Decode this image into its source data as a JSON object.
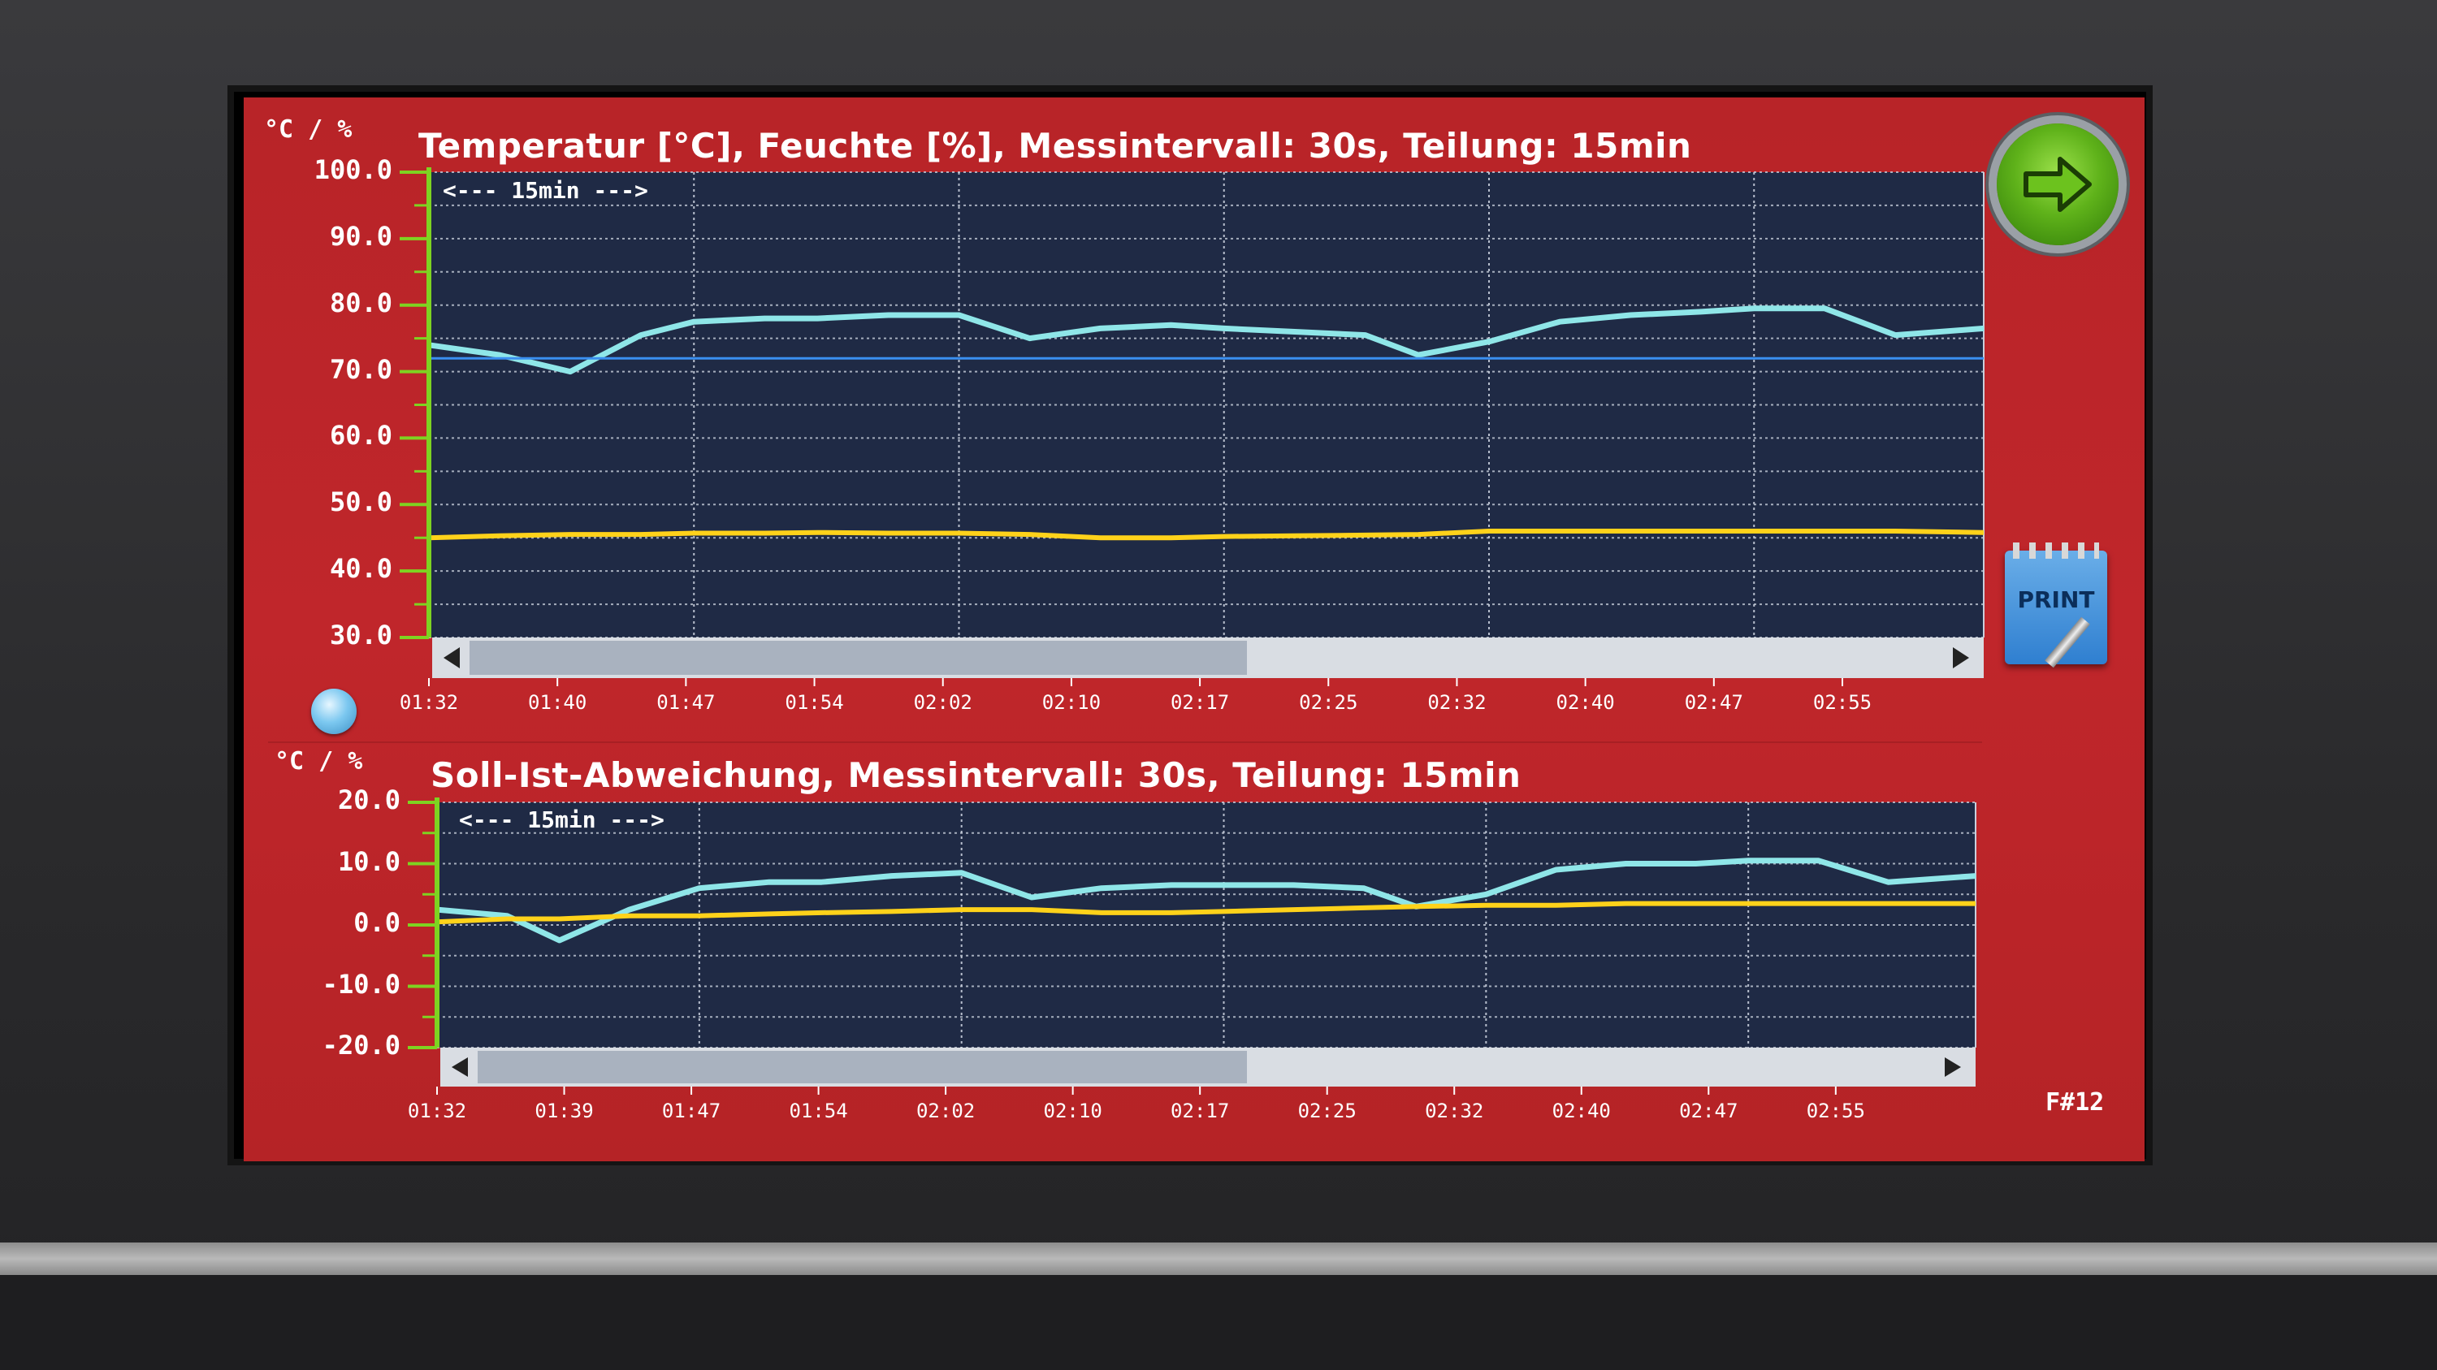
{
  "top_chart": {
    "unit": "°C / %",
    "title": "Temperatur [°C], Feuchte [%], Messintervall: 30s, Teilung: 15min",
    "span_label": "<--- 15min --->",
    "yticks": [
      "100.0",
      "90.0",
      "80.0",
      "70.0",
      "60.0",
      "50.0",
      "40.0",
      "30.0"
    ],
    "xticks": [
      "01:32",
      "01:40",
      "01:47",
      "01:54",
      "02:02",
      "02:10",
      "02:17",
      "02:25",
      "02:32",
      "02:40",
      "02:47",
      "02:55"
    ]
  },
  "bottom_chart": {
    "unit": "°C / %",
    "title": "Soll-Ist-Abweichung, Messintervall: 30s, Teilung: 15min",
    "span_label": "<--- 15min --->",
    "yticks": [
      "20.0",
      "10.0",
      "0.0",
      "-10.0",
      "-20.0"
    ],
    "xticks": [
      "01:32",
      "01:39",
      "01:47",
      "01:54",
      "02:02",
      "02:10",
      "02:17",
      "02:25",
      "02:32",
      "02:40",
      "02:47",
      "02:55"
    ]
  },
  "print_button": {
    "label": "PRINT"
  },
  "go_button": {
    "icon": "arrow-right-icon"
  },
  "page_number": "F#12",
  "colors": {
    "panel": "#bd252a",
    "plot_bg": "#1f2a45",
    "temperature_line": "#8fe6e8",
    "humidity_line": "#ffd21a",
    "setpoint_line": "#3a8ff0",
    "axis_green": "#7ed321"
  },
  "chart_data": [
    {
      "type": "line",
      "x": [
        "01:32",
        "01:36",
        "01:40",
        "01:44",
        "01:47",
        "01:51",
        "01:54",
        "01:58",
        "02:02",
        "02:06",
        "02:10",
        "02:14",
        "02:17",
        "02:21",
        "02:25",
        "02:28",
        "02:32",
        "02:36",
        "02:40",
        "02:44",
        "02:47",
        "02:51",
        "02:55",
        "03:00"
      ],
      "series": [
        {
          "values": [
            74,
            72.5,
            70,
            75.5,
            77.5,
            78,
            78,
            78.5,
            78.5,
            75,
            76.5,
            77,
            76.5,
            76,
            75.5,
            72.5,
            74.5,
            77.5,
            78.5,
            79,
            79.5,
            79.5,
            75.5,
            76.5
          ]
        },
        {
          "values": [
            45,
            45.3,
            45.5,
            45.5,
            45.7,
            45.7,
            45.8,
            45.7,
            45.7,
            45.5,
            45,
            45,
            45.2,
            45.3,
            45.4,
            45.5,
            46,
            46,
            46,
            46,
            46,
            46,
            46,
            45.8
          ]
        },
        {
          "values": [
            72,
            72,
            72,
            72,
            72,
            72,
            72,
            72,
            72,
            72,
            72,
            72,
            72,
            72,
            72,
            72,
            72,
            72,
            72,
            72,
            72,
            72,
            72,
            72
          ]
        }
      ],
      "ylim": [
        30,
        100
      ]
    },
    {
      "type": "line",
      "x": [
        "01:32",
        "01:36",
        "01:39",
        "01:43",
        "01:47",
        "01:51",
        "01:54",
        "01:58",
        "02:02",
        "02:06",
        "02:10",
        "02:14",
        "02:17",
        "02:21",
        "02:25",
        "02:28",
        "02:32",
        "02:36",
        "02:40",
        "02:44",
        "02:47",
        "02:51",
        "02:55",
        "03:00"
      ],
      "series": [
        {
          "values": [
            2.5,
            1.5,
            -2.5,
            2.5,
            6,
            7,
            7,
            8,
            8.5,
            4.5,
            6,
            6.5,
            6.5,
            6.5,
            6,
            3,
            5,
            9,
            10,
            10,
            10.5,
            10.5,
            7,
            8
          ]
        },
        {
          "values": [
            0.5,
            1,
            1,
            1.5,
            1.5,
            1.8,
            2,
            2.2,
            2.5,
            2.5,
            2,
            2,
            2.2,
            2.5,
            2.8,
            3,
            3.2,
            3.2,
            3.5,
            3.5,
            3.5,
            3.5,
            3.5,
            3.5
          ]
        }
      ],
      "ylim": [
        -20,
        20
      ]
    }
  ]
}
